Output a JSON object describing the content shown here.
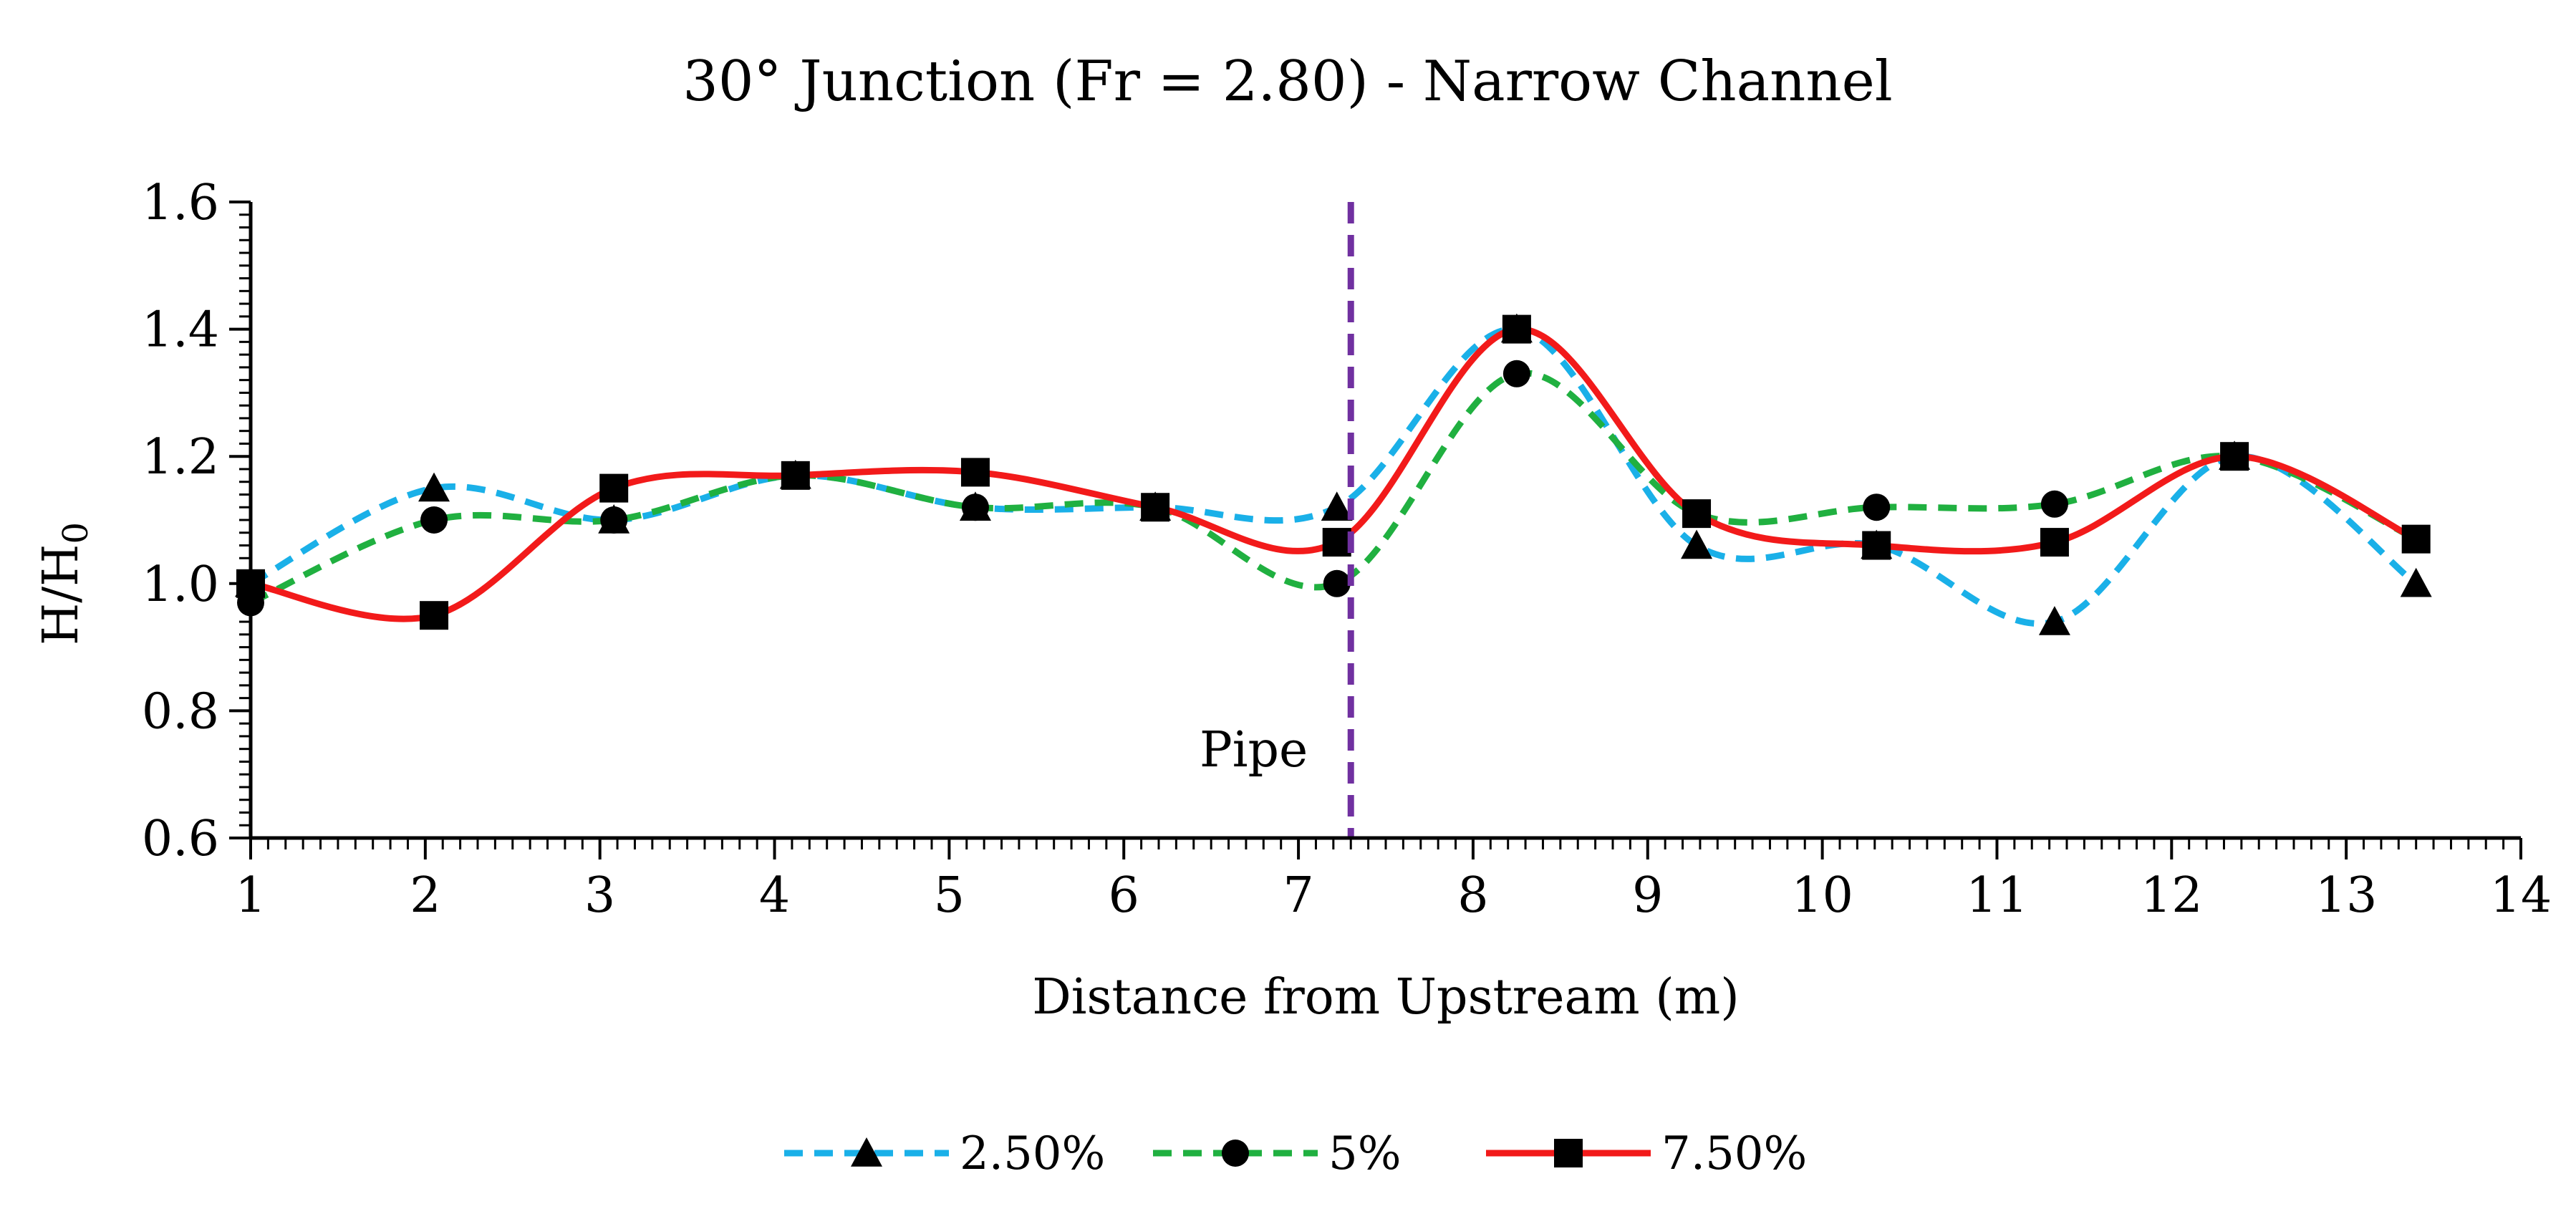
{
  "chart_data": {
    "type": "line",
    "title": "30° Junction (Fr = 2.80) - Narrow Channel",
    "xlabel": "Distance from Upstream (m)",
    "ylabel_main": "H/H",
    "ylabel_sub": "0",
    "xlim": [
      1,
      14
    ],
    "ylim": [
      0.6,
      1.6
    ],
    "x_ticks": [
      1,
      2,
      3,
      4,
      5,
      6,
      7,
      8,
      9,
      10,
      11,
      12,
      13,
      14
    ],
    "y_ticks": [
      "0.6",
      "0.8",
      "1.0",
      "1.2",
      "1.4",
      "1.6"
    ],
    "series": [
      {
        "name": "2.50%",
        "color": "#1AB0E8",
        "line_style": "dashed",
        "marker": "triangle",
        "x": [
          1.0,
          2.05,
          3.08,
          4.12,
          5.15,
          6.18,
          7.22,
          8.25,
          9.28,
          10.31,
          11.33,
          12.36,
          13.4
        ],
        "y": [
          1.0,
          1.15,
          1.1,
          1.17,
          1.12,
          1.12,
          1.12,
          1.4,
          1.06,
          1.06,
          0.94,
          1.2,
          1.0
        ]
      },
      {
        "name": "5%",
        "color": "#20B040",
        "line_style": "dashed",
        "marker": "circle",
        "x": [
          1.0,
          2.05,
          3.08,
          4.12,
          5.15,
          6.18,
          7.22,
          8.25,
          9.28,
          10.31,
          11.33,
          12.36,
          13.4
        ],
        "y": [
          0.97,
          1.1,
          1.1,
          1.17,
          1.12,
          1.12,
          1.0,
          1.33,
          1.11,
          1.12,
          1.125,
          1.2,
          1.07
        ]
      },
      {
        "name": "7.50%",
        "color": "#F21A1A",
        "line_style": "solid",
        "marker": "square",
        "x": [
          1.0,
          2.05,
          3.08,
          4.12,
          5.15,
          6.18,
          7.22,
          8.25,
          9.28,
          10.31,
          11.33,
          12.36,
          13.4
        ],
        "y": [
          1.0,
          0.95,
          1.15,
          1.17,
          1.175,
          1.12,
          1.065,
          1.4,
          1.11,
          1.06,
          1.065,
          1.2,
          1.07
        ]
      }
    ],
    "annotations": [
      {
        "type": "vertical-line",
        "x": 7.3,
        "label": "Pipe",
        "color": "#7030A0",
        "line_style": "dashed"
      }
    ],
    "legend_position": "bottom-center",
    "grid": false
  }
}
